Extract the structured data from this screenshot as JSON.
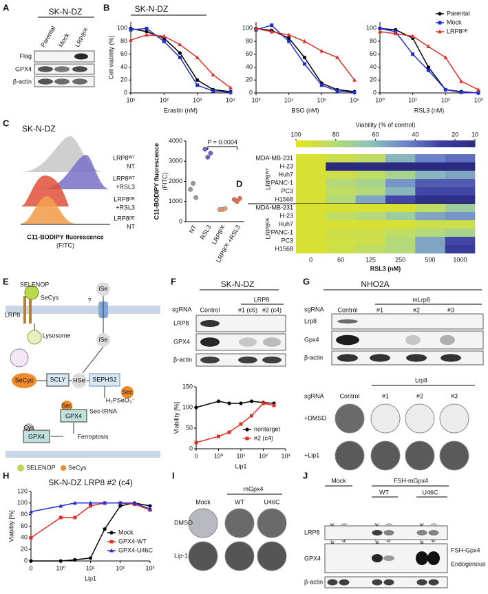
{
  "figure": {
    "letters": [
      "A",
      "B",
      "C",
      "D",
      "E",
      "F",
      "G",
      "H",
      "I",
      "J"
    ],
    "A": {
      "cell_line": "SK-N-DZ",
      "lanes": [
        "Parental",
        "Mock",
        "LRP8ᴼᴱ"
      ],
      "rows": [
        "Flag",
        "GPX4",
        "β-actin"
      ]
    },
    "B": {
      "cell_line": "SK-N-DZ"
    },
    "C": {
      "cell_line": "SK-N-DZ",
      "histogram_labels": [
        [
          "LRP8ᵂᵀ",
          "NT"
        ],
        [
          "LRP8ᵂᵀ",
          "+RSL3"
        ],
        [
          "LRP8ᴼᴱ",
          "+RSL3"
        ],
        [
          "LRP8ᴼᴱ",
          "NT"
        ]
      ],
      "x_label": "C11-BODIPY fluorescence",
      "x_unit": "(FITC)"
    },
    "E": {
      "selenop": "SELENOP",
      "secys": "SeCys",
      "lrp8": "LRP8",
      "unknown": "?",
      "ise_out": "iSe",
      "lysosome": "Lysosome",
      "ise_in": "iSe",
      "secys_in": "SeCys",
      "scly": "SCLY",
      "hse": "HSe",
      "sephs2": "SEPHS2",
      "h2pseo3": "H₂PSeO₃⁻",
      "sec_trna": "Sec-tRNA",
      "sec": "Sec",
      "sec_gpx4": "Sec",
      "gpx4_sec": "GPX4",
      "cys": "Cys",
      "gpx4_cys": "GPX4",
      "ferroptosis": "Ferroptosis",
      "legend_selenop": "SELENOP",
      "legend_secys": "SeCys"
    },
    "F": {
      "cell_line": "SK-N-DZ",
      "sgrna": "sgRNA",
      "group": "LRP8",
      "lanes": [
        "Control",
        "#1 (c6)",
        "#2 (c4)"
      ],
      "rows": [
        "LRP8",
        "GPX4",
        "β-actin"
      ]
    },
    "G": {
      "cell_line": "NHO2A",
      "sgrna": "sgRNA",
      "group": "mLrp8",
      "lanes": [
        "Control",
        "#1",
        "#2",
        "#3"
      ],
      "rows": [
        "Lrp8",
        "Gpx4",
        "β-actin"
      ],
      "colony_group": "Lrp8",
      "colony_sgrna": "sgRNA",
      "colony_lanes": [
        "Control",
        "#1",
        "#2",
        "#3"
      ],
      "treatments": [
        "+DMSO",
        "+Lip1"
      ]
    },
    "I": {
      "group": "mGpx4",
      "lanes": [
        "Mock",
        "WT",
        "U46C"
      ],
      "treatments": [
        "DMSO",
        "Lip-1"
      ]
    },
    "J": {
      "mock": "Mock",
      "group": "FSH-mGpx4",
      "subgroups": [
        "WT",
        "U46C"
      ],
      "lanes": [
        "nontarget",
        "#2 (c4)",
        "nontarget",
        "#2 (c4)",
        "nontarget",
        "#2 (c4)"
      ],
      "rows": [
        "LRP8",
        "GPX4",
        "β-actin"
      ],
      "bands": [
        "FSH-Gpx4",
        "Endogenous"
      ]
    }
  },
  "chart_data": [
    {
      "type": "line",
      "y_label": "Cell viability (%)",
      "x_label": "Erastin (nM)",
      "xscale": "log",
      "x": [
        10,
        30,
        100,
        300,
        1000,
        3000,
        10000
      ],
      "xlim": [
        10,
        10000
      ],
      "xticks": [
        {
          "value": 10,
          "label": "10¹"
        },
        {
          "value": 100,
          "label": "10²"
        },
        {
          "value": 1000,
          "label": "10³"
        },
        {
          "value": 10000,
          "label": "10⁴"
        }
      ],
      "ylim": [
        0,
        110
      ],
      "yticks": [
        0,
        20,
        40,
        60,
        80,
        100
      ],
      "series": [
        {
          "color": "#000000",
          "marker": "circle",
          "values": [
            100,
            95,
            85,
            62,
            20,
            5,
            2
          ]
        },
        {
          "color": "#1f2fd0",
          "marker": "square",
          "values": [
            98,
            100,
            80,
            55,
            12,
            3,
            1
          ]
        },
        {
          "color": "#e0302a",
          "marker": "triangle",
          "values": [
            82,
            90,
            88,
            75,
            55,
            28,
            8
          ]
        }
      ]
    },
    {
      "type": "line",
      "x_label": "BSO (nM)",
      "xscale": "log",
      "x": [
        1000,
        3000,
        10000,
        30000,
        100000,
        300000,
        1000000
      ],
      "xlim": [
        1000,
        1000000
      ],
      "xticks": [
        {
          "value": 1000,
          "label": "10³"
        },
        {
          "value": 10000,
          "label": "10⁴"
        },
        {
          "value": 100000,
          "label": "10⁵"
        },
        {
          "value": 1000000,
          "label": "10⁶"
        }
      ],
      "ylim": [
        0,
        110
      ],
      "yticks": [
        0,
        20,
        40,
        60,
        80,
        100
      ],
      "series": [
        {
          "color": "#000000",
          "marker": "circle",
          "values": [
            100,
            97,
            85,
            55,
            15,
            5,
            2
          ]
        },
        {
          "color": "#1f2fd0",
          "marker": "square",
          "values": [
            98,
            105,
            80,
            45,
            12,
            3,
            1
          ]
        },
        {
          "color": "#e0302a",
          "marker": "triangle",
          "values": [
            100,
            95,
            90,
            80,
            65,
            55,
            20
          ]
        }
      ]
    },
    {
      "type": "line",
      "x_label": "RSL3 (nM)",
      "xscale": "log",
      "x": [
        1,
        3,
        10,
        30,
        100,
        300,
        1000
      ],
      "xlim": [
        1,
        1000
      ],
      "xticks": [
        {
          "value": 1,
          "label": "10⁰"
        },
        {
          "value": 10,
          "label": "10¹"
        },
        {
          "value": 100,
          "label": "10²"
        },
        {
          "value": 1000,
          "label": "10³"
        }
      ],
      "ylim": [
        0,
        110
      ],
      "yticks": [
        0,
        20,
        40,
        60,
        80,
        100
      ],
      "legend": "upper right",
      "series": [
        {
          "name": "Parental",
          "color": "#000000",
          "marker": "circle",
          "values": [
            100,
            98,
            85,
            40,
            5,
            2,
            0
          ]
        },
        {
          "name": "Mock",
          "color": "#1f2fd0",
          "marker": "square",
          "values": [
            100,
            95,
            60,
            35,
            5,
            1,
            0
          ]
        },
        {
          "name": "LRP8ᴼᴱ",
          "color": "#e0302a",
          "marker": "triangle",
          "values": [
            95,
            92,
            88,
            72,
            55,
            18,
            5
          ]
        }
      ]
    },
    {
      "type": "strip",
      "y_label": "C11-BODIPY fluorescence",
      "y_unit": "(FITC)",
      "categories": [
        "NT",
        "RSL3",
        "LRP8ᴼᴱ",
        "LRP8ᴼᴱ +RSL3"
      ],
      "colors": [
        "#9a9a9a",
        "#6f62c8",
        "#e8a070",
        "#e07050"
      ],
      "ylim": [
        0,
        4000
      ],
      "yticks": [
        0,
        1000,
        2000,
        3000,
        4000
      ],
      "values": [
        [
          1600,
          1900,
          1200
        ],
        [
          3600,
          3200,
          3400
        ],
        [
          600,
          600,
          650
        ],
        [
          1100,
          1000,
          1150
        ]
      ],
      "annotation": "P = 0.0004"
    },
    {
      "type": "heatmap",
      "title": "Viability (% of control)",
      "x_label": "RSL3 (nM)",
      "categories": [
        0,
        60,
        125,
        250,
        500,
        1000
      ],
      "clim": [
        100,
        10
      ],
      "cticks": [
        100,
        80,
        60,
        40,
        20,
        10
      ],
      "colormap": [
        "#e4e21c",
        "#b8dc70",
        "#8fc4b8",
        "#6f86cc",
        "#3c3fa0",
        "#2a2a80"
      ],
      "groups": [
        {
          "name": "LRP8ᵂᵀ",
          "rows": [
            "MDA-MB-231",
            "H-23",
            "Huh7",
            "PANC-1",
            "PC3",
            "H1568"
          ],
          "values": [
            [
              95,
              90,
              85,
              60,
              45,
              40
            ],
            [
              95,
              10,
              10,
              10,
              10,
              10
            ],
            [
              95,
              90,
              85,
              75,
              60,
              55
            ],
            [
              95,
              80,
              75,
              50,
              35,
              35
            ],
            [
              95,
              85,
              80,
              60,
              30,
              30
            ],
            [
              95,
              80,
              55,
              30,
              15,
              15
            ]
          ]
        },
        {
          "name": "LRP8ᴼᴱ",
          "rows": [
            "MDA-MB-231",
            "H-23",
            "Huh7",
            "PANC-1",
            "PC3",
            "H1568"
          ],
          "values": [
            [
              95,
              95,
              95,
              95,
              85,
              70
            ],
            [
              95,
              85,
              80,
              70,
              55,
              50
            ],
            [
              95,
              95,
              95,
              95,
              90,
              90
            ],
            [
              95,
              90,
              90,
              85,
              80,
              75
            ],
            [
              95,
              92,
              90,
              80,
              55,
              30
            ],
            [
              95,
              90,
              85,
              80,
              55,
              25
            ]
          ]
        }
      ]
    },
    {
      "type": "line",
      "y_label": "Viability [%]",
      "x_label": "Lip1",
      "xscale": "symlog",
      "x": [
        0,
        1,
        3,
        10,
        30,
        100,
        300
      ],
      "xlim": [
        0,
        1000
      ],
      "xticks": [
        0,
        {
          "value": 1,
          "label": "10⁰"
        },
        {
          "value": 10,
          "label": "10¹"
        },
        {
          "value": 100,
          "label": "10²"
        },
        {
          "value": 1000,
          "label": "10³"
        }
      ],
      "ylim": [
        0,
        150
      ],
      "yticks": [
        0,
        50,
        100,
        150
      ],
      "legend": "lower right",
      "series": [
        {
          "name": "nontarget",
          "color": "#000000",
          "marker": "circle",
          "values": [
            100,
            115,
            110,
            110,
            115,
            112,
            110
          ]
        },
        {
          "name": "#2 (c4)",
          "color": "#e0302a",
          "marker": "square",
          "values": [
            15,
            30,
            40,
            60,
            80,
            110,
            105
          ]
        }
      ]
    },
    {
      "type": "line",
      "title": "SK-N-DZ LRP8 #2 (c4)",
      "y_label": "Viability [%]",
      "x_label": "Lip1",
      "xscale": "symlog",
      "x": [
        0,
        1,
        3,
        10,
        30,
        100,
        300,
        1000
      ],
      "xlim": [
        0,
        1000
      ],
      "xticks": [
        0,
        {
          "value": 1,
          "label": "10⁰"
        },
        {
          "value": 10,
          "label": "10¹"
        },
        {
          "value": 100,
          "label": "10²"
        },
        {
          "value": 1000,
          "label": "10³"
        }
      ],
      "ylim": [
        0,
        120
      ],
      "yticks": [
        0,
        20,
        40,
        60,
        80,
        100,
        120
      ],
      "legend": "lower right",
      "series": [
        {
          "name": "Mock",
          "color": "#000000",
          "marker": "circle",
          "values": [
            0,
            0,
            2,
            5,
            55,
            95,
            100,
            95
          ]
        },
        {
          "name": "GPX4-WT",
          "color": "#e0302a",
          "marker": "square",
          "values": [
            40,
            75,
            75,
            95,
            100,
            100,
            98,
            88
          ]
        },
        {
          "name": "GPX4-U46C",
          "color": "#1f2fd0",
          "marker": "triangle",
          "values": [
            85,
            95,
            100,
            100,
            100,
            100,
            100,
            90
          ]
        }
      ]
    }
  ]
}
